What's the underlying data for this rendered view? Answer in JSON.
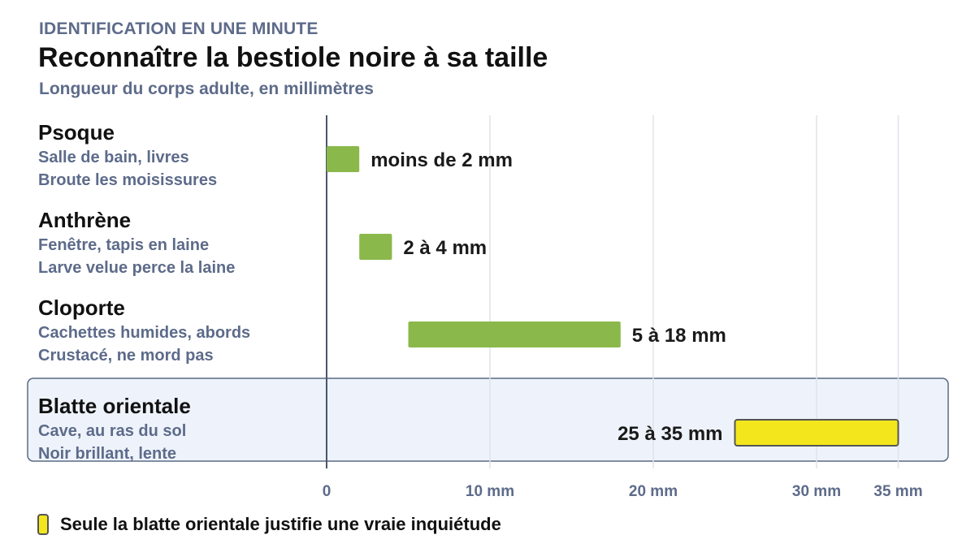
{
  "header": {
    "kicker": "IDENTIFICATION EN UNE MINUTE",
    "title": "Reconnaître la bestiole noire à sa taille",
    "subtitle": "Longueur du corps adulte, en millimètres"
  },
  "colors": {
    "normal_bar": "#8ab84a",
    "alert_bar": "#f4e61c",
    "alert_bar_border": "#555555",
    "highlight_bg": "#eef3fb",
    "highlight_border": "#5a6a85",
    "grid": "#dfe3ea",
    "axis": "#4a5570"
  },
  "chart_data": {
    "type": "bar",
    "orientation": "horizontal",
    "subtype": "range",
    "unit": "mm",
    "xlim": [
      0,
      35
    ],
    "xticks": [
      {
        "value": 0,
        "label": "0"
      },
      {
        "value": 10,
        "label": "10 mm"
      },
      {
        "value": 20,
        "label": "20 mm"
      },
      {
        "value": 30,
        "label": "30 mm"
      },
      {
        "value": 35,
        "label": "35 mm"
      }
    ],
    "grid": true,
    "rows": [
      {
        "name": "Psoque",
        "desc1": "Salle de bain, livres",
        "desc2": "Broute les moisissures",
        "min": 0,
        "max": 2,
        "label": "moins de 2 mm",
        "highlight": false
      },
      {
        "name": "Anthrène",
        "desc1": "Fenêtre, tapis en laine",
        "desc2": "Larve velue perce la laine",
        "min": 2,
        "max": 4,
        "label": "2 à 4 mm",
        "highlight": false
      },
      {
        "name": "Cloporte",
        "desc1": "Cachettes humides, abords",
        "desc2": "Crustacé, ne mord pas",
        "min": 5,
        "max": 18,
        "label": "5 à 18 mm",
        "highlight": false
      },
      {
        "name": "Blatte orientale",
        "desc1": "Cave, au ras du sol",
        "desc2": "Noir brillant, lente",
        "min": 25,
        "max": 35,
        "label": "25 à 35 mm",
        "highlight": true
      }
    ]
  },
  "legend": {
    "text": "Seule la blatte orientale justifie une vraie inquiétude"
  }
}
